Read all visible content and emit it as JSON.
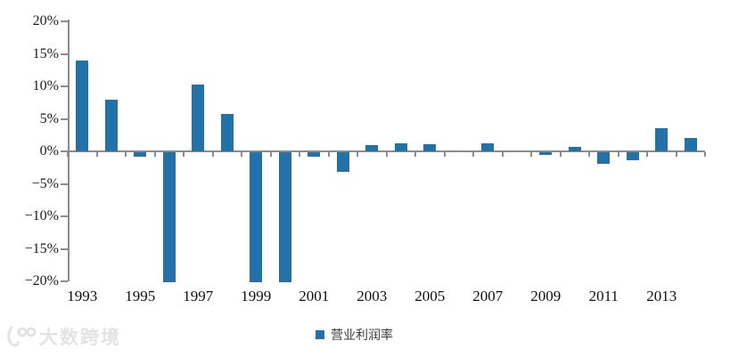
{
  "chart_data": {
    "type": "bar",
    "title": "",
    "categories": [
      "1993",
      "1994",
      "1995",
      "1996",
      "1997",
      "1998",
      "1999",
      "2000",
      "2001",
      "2002",
      "2003",
      "2004",
      "2005",
      "2006",
      "2007",
      "2008",
      "2009",
      "2010",
      "2011",
      "2012",
      "2013",
      "2014"
    ],
    "series": [
      {
        "name": "营业利润率",
        "values": [
          14,
          8,
          -0.7,
          -20,
          10.3,
          5.7,
          -20,
          -20,
          -0.7,
          -3,
          1,
          1.2,
          1.1,
          0,
          1.2,
          0,
          -0.4,
          0.7,
          -1.8,
          -1.2,
          3.5,
          2.1
        ]
      }
    ],
    "xlabel": "",
    "ylabel": "",
    "ylim": [
      -20,
      20
    ],
    "yticks": [
      20,
      15,
      10,
      5,
      0,
      -5,
      -10,
      -15,
      -20
    ],
    "ytick_labels": [
      "20%",
      "15%",
      "10%",
      "5%",
      "0%",
      "−5%",
      "−10%",
      "−15%",
      "−20%"
    ],
    "xtick_labels_shown": [
      "1993",
      "1995",
      "1997",
      "1999",
      "2001",
      "2003",
      "2005",
      "2007",
      "2009",
      "2011",
      "2013"
    ],
    "grid": false,
    "legend_position": "bottom-center",
    "bar_color": "#2172a8",
    "axis_color": "#8c8c8c",
    "tick_label_color": "#1c1c1c"
  },
  "legend": {
    "label": "营业利润率",
    "swatch_color": "#2172a8"
  },
  "watermark": {
    "logo": "ten-one-hundred-logo",
    "text": "大数跨境"
  }
}
